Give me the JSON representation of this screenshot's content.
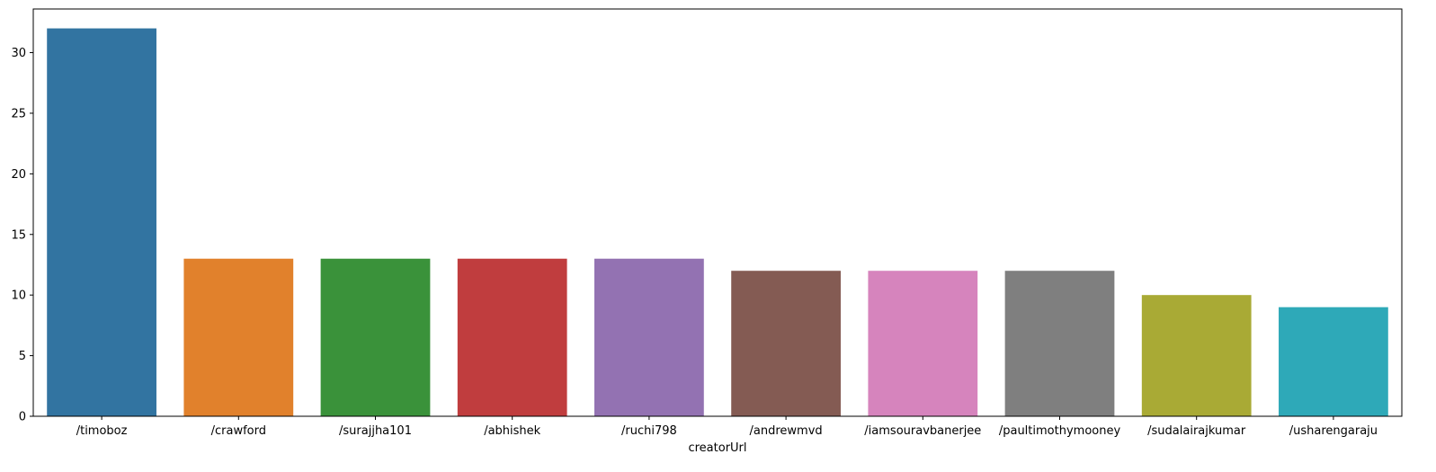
{
  "chart_data": {
    "type": "bar",
    "title": "",
    "xlabel": "creatorUrl",
    "ylabel": "",
    "categories": [
      "/timoboz",
      "/crawford",
      "/surajjha101",
      "/abhishek",
      "/ruchi798",
      "/andrewmvd",
      "/iamsouravbanerjee",
      "/paultimothymooney",
      "/sudalairajkumar",
      "/usharengaraju"
    ],
    "values": [
      32,
      13,
      13,
      13,
      13,
      12,
      12,
      12,
      10,
      9
    ],
    "colors": [
      "#3274a1",
      "#e1812c",
      "#3a923a",
      "#c03d3e",
      "#9372b2",
      "#845b53",
      "#d684bd",
      "#7f7f7f",
      "#a9aa35",
      "#2ea9b8"
    ],
    "yticks": [
      0,
      5,
      10,
      15,
      20,
      25,
      30
    ],
    "ylim": [
      0,
      33.6
    ],
    "grid": false,
    "legend": "none"
  }
}
